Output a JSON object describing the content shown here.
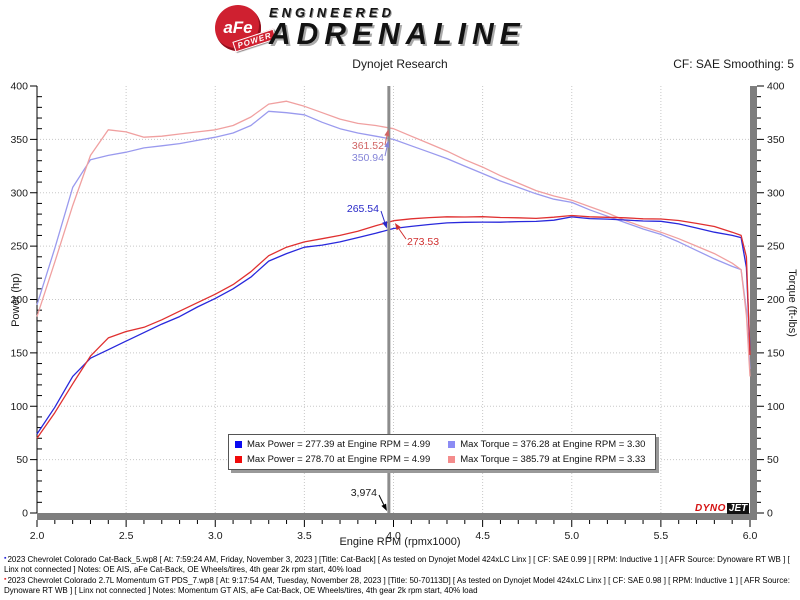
{
  "header": {
    "brand": {
      "circle_text": "aFe",
      "banner_text": "POWER",
      "line1": "ENGINEERED",
      "line2": "ADRENALINE"
    },
    "subtitle": "Dynojet Research",
    "smoothing": "CF: SAE Smoothing: 5"
  },
  "chart_data": {
    "type": "line",
    "xlabel": "Engine RPM (rpmx1000)",
    "ylabel_left": "Power (hp)",
    "ylabel_right": "Torque (ft-lbs)",
    "xlim": [
      2.0,
      6.0
    ],
    "ylim": [
      0,
      400
    ],
    "x_minor_step": 0.1,
    "y_minor_step": 10,
    "grid": "dotted",
    "x_ticks": [
      {
        "v": 2.0,
        "t": "2.0"
      },
      {
        "v": 2.5,
        "t": "2.5"
      },
      {
        "v": 3.0,
        "t": "3.0"
      },
      {
        "v": 3.5,
        "t": "3.5"
      },
      {
        "v": 4.0,
        "t": "4.0"
      },
      {
        "v": 4.5,
        "t": "4.5"
      },
      {
        "v": 5.0,
        "t": "5.0"
      },
      {
        "v": 5.5,
        "t": "5.5"
      },
      {
        "v": 6.0,
        "t": "6.0"
      }
    ],
    "y_ticks": [
      {
        "v": 0,
        "t": "0"
      },
      {
        "v": 50,
        "t": "50"
      },
      {
        "v": 100,
        "t": "100"
      },
      {
        "v": 150,
        "t": "150"
      },
      {
        "v": 200,
        "t": "200"
      },
      {
        "v": 250,
        "t": "250"
      },
      {
        "v": 300,
        "t": "300"
      },
      {
        "v": 350,
        "t": "350"
      },
      {
        "v": 400,
        "t": "400"
      }
    ],
    "colors": {
      "grid": "#c8c8c8",
      "cursor": "#8c8c8c",
      "scrollbar": "#7e7e7e",
      "axis": "#000000"
    },
    "x": [
      2.0,
      2.1,
      2.2,
      2.3,
      2.4,
      2.5,
      2.6,
      2.7,
      2.8,
      2.9,
      3.0,
      3.1,
      3.2,
      3.3,
      3.4,
      3.5,
      3.6,
      3.7,
      3.8,
      3.9,
      4.0,
      4.1,
      4.2,
      4.3,
      4.4,
      4.5,
      4.6,
      4.7,
      4.8,
      4.9,
      5.0,
      5.1,
      5.2,
      5.3,
      5.4,
      5.5,
      5.6,
      5.7,
      5.8,
      5.9,
      5.95,
      5.98,
      6.0
    ],
    "series": [
      {
        "name": "torque-stock",
        "axis": "right",
        "color": "#9a9aee",
        "values": [
          195,
          248,
          305,
          331,
          335,
          338,
          342,
          344,
          346,
          349,
          352,
          356,
          363,
          376.3,
          375,
          373,
          366,
          360,
          356,
          353,
          350,
          344,
          338,
          332,
          325,
          318,
          311,
          305,
          299,
          294,
          291,
          284,
          278,
          272,
          266,
          261,
          254,
          246,
          238,
          231,
          228,
          190,
          135
        ]
      },
      {
        "name": "torque-modified",
        "axis": "right",
        "color": "#f0a0a0",
        "values": [
          184,
          235,
          288,
          335,
          359,
          357,
          352,
          353,
          355,
          357,
          359,
          363,
          371,
          383,
          385.8,
          381,
          375,
          369,
          365,
          363,
          360,
          353,
          346,
          339,
          331,
          324,
          316,
          309,
          302,
          297,
          293,
          287,
          281,
          274,
          268,
          263,
          257,
          250,
          243,
          234,
          228,
          185,
          128
        ]
      },
      {
        "name": "power-stock",
        "axis": "left",
        "color": "#2828dc",
        "values": [
          74,
          99,
          128,
          145,
          153,
          161,
          169,
          177,
          184,
          193,
          201,
          210,
          221,
          236,
          243,
          249,
          251,
          254,
          258,
          262,
          266.5,
          268.5,
          270.3,
          271.8,
          272.3,
          272.5,
          272.4,
          273,
          273.2,
          274.3,
          277.4,
          275.8,
          275.3,
          274.5,
          273.5,
          273.3,
          270.8,
          267,
          263,
          260,
          258,
          230,
          152
        ]
      },
      {
        "name": "power-modified",
        "axis": "left",
        "color": "#e03030",
        "values": [
          70,
          94,
          121,
          147,
          164,
          170,
          174,
          181,
          189,
          197,
          205,
          214,
          226,
          241,
          249,
          254,
          257,
          260,
          264,
          269,
          273.8,
          275.6,
          276.7,
          277.5,
          277.3,
          277.6,
          276.8,
          276.5,
          276,
          277.1,
          278.7,
          277.5,
          277,
          276.5,
          275.6,
          275.4,
          274,
          271.3,
          268.4,
          263,
          260,
          240,
          148
        ]
      }
    ],
    "cursor": {
      "rpm": 3.974,
      "axis_label": "3,974",
      "markers": [
        {
          "label": "361.52",
          "value": 361.52,
          "series": "torque-modified",
          "color": "#d06464"
        },
        {
          "label": "350.94",
          "value": 350.94,
          "series": "torque-stock",
          "color": "#8484d8"
        },
        {
          "label": "265.54",
          "value": 265.54,
          "series": "power-stock",
          "color": "#2828c8"
        },
        {
          "label": "273.53",
          "value": 273.53,
          "series": "power-modified",
          "color": "#d03030"
        }
      ]
    },
    "legend": {
      "items": [
        {
          "swatch": "#0a0af0",
          "text": "Max Power = 277.39 at Engine RPM = 4.99"
        },
        {
          "swatch": "#f00a0a",
          "text": "Max Power = 278.70 at Engine RPM = 4.99"
        },
        {
          "swatch": "#8c8cf4",
          "text": "Max Torque = 376.28 at Engine RPM = 3.30"
        },
        {
          "swatch": "#f48c8c",
          "text": "Max Torque = 385.79 at Engine RPM = 3.33"
        }
      ]
    },
    "brand_mark": {
      "part1": "DYNO",
      "part2": "JET"
    }
  },
  "footer": {
    "runs": [
      {
        "bullet_color": "#2828dc",
        "text": "2023 Chevrolet Colorado Cat-Back_5.wp8 [ At: 7:59:24 AM, Friday, November 3, 2023 ] [Title: Cat-Back]  [ As tested on Dynojet Model 424xLC Linx ] [ CF: SAE 0.99 ] [ RPM: Inductive 1 ] [ AFR Source: Dynoware RT WB ] [ Linx not connected ] Notes: OE AIS, aFe Cat-Back, OE Wheels/tires, 4th gear 2k rpm start, 40% load"
      },
      {
        "bullet_color": "#e03030",
        "text": "2023 Chevrolet Colorado 2.7L Momentum GT PDS_7.wp8 [ At: 9:17:54 AM, Tuesday, November 28, 2023 ] [Title: 50-70113D]  [ As tested on Dynojet Model 424xLC Linx ] [ CF: SAE 0.98 ] [ RPM: Inductive 1 ] [ AFR Source: Dynoware RT WB ] [ Linx not connected ] Notes: Momentum GT AIS, aFe Cat-Back, OE Wheels/tires, 4th gear 2k rpm start, 40% load"
      }
    ]
  }
}
